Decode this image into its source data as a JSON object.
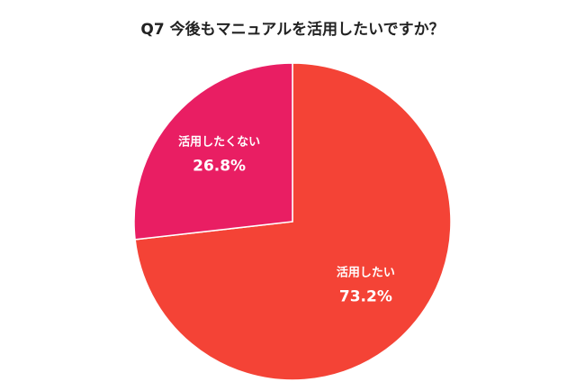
{
  "chart_data": {
    "type": "pie",
    "title": "Q7 今後もマニュアルを活用したいですか？",
    "slices": [
      {
        "label": "活用したい",
        "value": 73.2,
        "value_label": "73.2%",
        "color": "#f44336"
      },
      {
        "label": "活用したくない",
        "value": 26.8,
        "value_label": "26.8%",
        "color": "#e91e63"
      }
    ],
    "start_angle": "12 o'clock",
    "direction": "clockwise"
  }
}
